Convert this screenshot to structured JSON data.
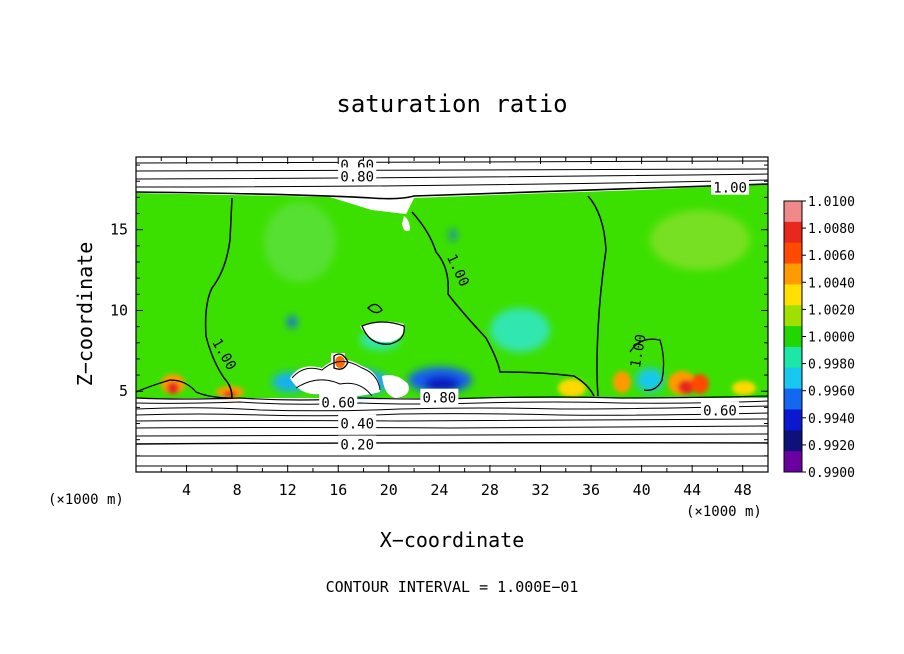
{
  "chart_data": {
    "type": "heatmap",
    "title": "saturation ratio",
    "xlabel": "X−coordinate",
    "ylabel": "Z−coordinate",
    "x_unit_label": "(×1000 m)",
    "z_unit_label": "(×1000 m)",
    "xlim": [
      0,
      50
    ],
    "ylim": [
      0,
      19.5
    ],
    "x_ticks": [
      4,
      8,
      12,
      16,
      20,
      24,
      28,
      32,
      36,
      40,
      44,
      48
    ],
    "y_ticks": [
      5,
      10,
      15
    ],
    "colorbar": {
      "min": 0.99,
      "max": 1.01,
      "ticks": [
        "1.0100",
        "1.0080",
        "1.0060",
        "1.0040",
        "1.0020",
        "1.0000",
        "0.9980",
        "0.9960",
        "0.9940",
        "0.9920",
        "0.9900"
      ],
      "colors": [
        "#f08a8a",
        "#e8281c",
        "#ff4a00",
        "#ff9a00",
        "#ffe000",
        "#a0e000",
        "#22d600",
        "#1ce6a8",
        "#18c8f0",
        "#1468f0",
        "#0a18d0",
        "#10107a",
        "#6a00a0"
      ]
    },
    "contour_labels": [
      {
        "text": "0.60",
        "x": 17.5,
        "y": 19.0
      },
      {
        "text": "0.80",
        "x": 17.5,
        "y": 18.3
      },
      {
        "text": "1.00",
        "x": 47.0,
        "y": 17.6
      },
      {
        "text": "1.00",
        "x": 25.5,
        "y": 12.5
      },
      {
        "text": "1.00",
        "x": 7.0,
        "y": 7.3
      },
      {
        "text": "1.00",
        "x": 39.7,
        "y": 7.5
      },
      {
        "text": "0.60",
        "x": 16.0,
        "y": 4.3
      },
      {
        "text": "0.80",
        "x": 24.0,
        "y": 4.6
      },
      {
        "text": "0.60",
        "x": 46.2,
        "y": 3.8
      },
      {
        "text": "0.40",
        "x": 17.5,
        "y": 3.0
      },
      {
        "text": "0.20",
        "x": 17.5,
        "y": 1.7
      }
    ],
    "footer": "CONTOUR INTERVAL = 1.000E−01"
  }
}
